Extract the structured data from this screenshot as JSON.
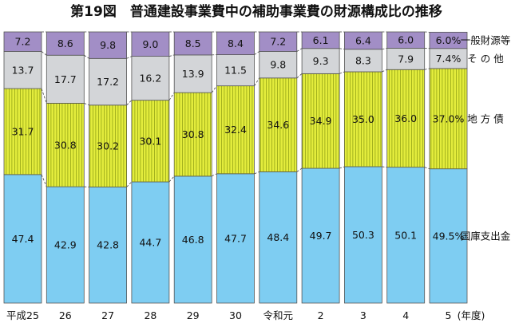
{
  "chart_data": {
    "type": "bar",
    "stacked": true,
    "percent": true,
    "title": "第19図　普通建設事業費中の補助事業費の財源構成比の推移",
    "xlabel": "(年度)",
    "ylim": [
      0,
      100
    ],
    "categories": [
      "平成25",
      "26",
      "27",
      "28",
      "29",
      "30",
      "令和元",
      "2",
      "3",
      "4",
      "5"
    ],
    "series": [
      {
        "name": "国庫支出金",
        "color": "#7ecdf2",
        "labels": [
          "47.4",
          "42.9",
          "42.8",
          "44.7",
          "46.8",
          "47.7",
          "48.4",
          "49.7",
          "50.3",
          "50.1",
          "49.5%"
        ],
        "values": [
          47.4,
          42.9,
          42.8,
          44.7,
          46.8,
          47.7,
          48.4,
          49.7,
          50.3,
          50.1,
          49.5
        ]
      },
      {
        "name": "地 方 債",
        "color": "#e3ec3c",
        "labels": [
          "31.7",
          "30.8",
          "30.2",
          "30.1",
          "30.8",
          "32.4",
          "34.6",
          "34.9",
          "35.0",
          "36.0",
          "37.0%"
        ],
        "values": [
          31.7,
          30.8,
          30.2,
          30.1,
          30.8,
          32.4,
          34.6,
          34.9,
          35.0,
          36.0,
          37.0
        ]
      },
      {
        "name": "そ の 他",
        "color": "#d3d5d8",
        "labels": [
          "13.7",
          "17.7",
          "17.2",
          "16.2",
          "13.9",
          "11.5",
          "9.8",
          "9.3",
          "8.3",
          "7.9",
          "7.4%"
        ],
        "values": [
          13.7,
          17.7,
          17.2,
          16.2,
          13.9,
          11.5,
          9.8,
          9.3,
          8.3,
          7.9,
          7.4
        ]
      },
      {
        "name": "一般財源等",
        "color": "#a28ec6",
        "labels": [
          "7.2",
          "8.6",
          "9.8",
          "9.0",
          "8.5",
          "8.4",
          "7.2",
          "6.1",
          "6.4",
          "6.0",
          "6.0%"
        ],
        "values": [
          7.2,
          8.6,
          9.8,
          9.0,
          8.5,
          8.4,
          7.2,
          6.1,
          6.4,
          6.0,
          6.0
        ]
      }
    ]
  }
}
